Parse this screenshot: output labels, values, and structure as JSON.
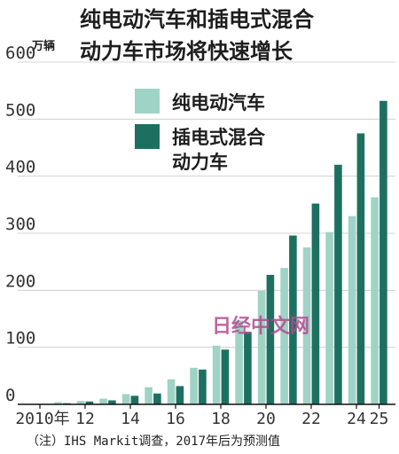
{
  "chart_data": {
    "type": "bar",
    "title_line1": "纯电动汽车和插电式混合",
    "title_line2": "动力车市场将快速增长",
    "unit": "万辆",
    "ylim": [
      0,
      600
    ],
    "yticks": [
      "0",
      "100",
      "200",
      "300",
      "400",
      "500",
      "600"
    ],
    "xtick_labels": [
      {
        "index": 0,
        "label": "2010年"
      },
      {
        "index": 2,
        "label": "12"
      },
      {
        "index": 4,
        "label": "14"
      },
      {
        "index": 6,
        "label": "16"
      },
      {
        "index": 8,
        "label": "18"
      },
      {
        "index": 10,
        "label": "20"
      },
      {
        "index": 12,
        "label": "22"
      },
      {
        "index": 14,
        "label": "24"
      },
      {
        "index": 15,
        "label": "25"
      }
    ],
    "categories": [
      "2010",
      "2011",
      "2012",
      "2013",
      "2014",
      "2015",
      "2016",
      "2017",
      "2018",
      "2019",
      "2020",
      "2021",
      "2022",
      "2023",
      "2024",
      "2025"
    ],
    "series": [
      {
        "name": "纯电动汽车",
        "color": "#9fd3c5",
        "values": [
          1,
          4,
          6,
          10,
          18,
          30,
          44,
          64,
          103,
          147,
          199,
          239,
          275,
          302,
          330,
          363
        ]
      },
      {
        "name": "插电式混合动力车",
        "color": "#1d7060",
        "values": [
          0,
          2,
          5,
          7,
          15,
          19,
          32,
          61,
          96,
          127,
          227,
          296,
          352,
          420,
          475,
          532
        ]
      }
    ],
    "legend": {
      "position": "top-center",
      "labels": [
        "纯电动汽车",
        "插电式混合",
        "动力车"
      ]
    },
    "note": "（注）IHS Markit调查，2017年后为预测值"
  },
  "watermark": "日经中文网"
}
